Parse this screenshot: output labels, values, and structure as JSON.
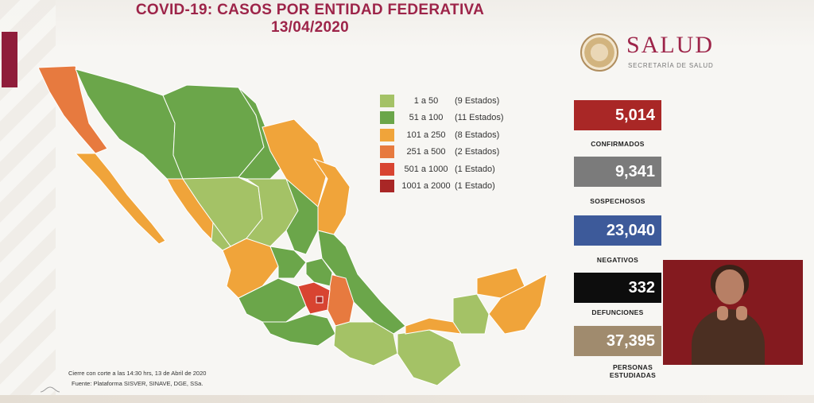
{
  "title_line1": "COVID-19: CASOS POR ENTIDAD FEDERATIVA",
  "title_line2": "13/04/2020",
  "logo": {
    "word": "SALUD",
    "sub": "SECRETARÍA DE SALUD",
    "icon": "coat-of-arms-icon"
  },
  "legend": [
    {
      "range": "1 a 50",
      "count": "(9 Estados)",
      "color": "#a4c266"
    },
    {
      "range": "51 a 100",
      "count": "(11 Estados)",
      "color": "#6ba64a"
    },
    {
      "range": "101 a 250",
      "count": "(8 Estados)",
      "color": "#f0a43a"
    },
    {
      "range": "251 a 500",
      "count": "(2 Estados)",
      "color": "#e77a3f"
    },
    {
      "range": "501 a 1000",
      "count": "(1 Estado)",
      "color": "#d84431"
    },
    {
      "range": "1001 a 2000",
      "count": "(1 Estado)",
      "color": "#a92726"
    }
  ],
  "stats": [
    {
      "value": "5,014",
      "label": "CONFIRMADOS",
      "color": "#a92726"
    },
    {
      "value": "9,341",
      "label": "SOSPECHOSOS",
      "color": "#7b7b7b"
    },
    {
      "value": "23,040",
      "label": "NEGATIVOS",
      "color": "#3d5a9a"
    },
    {
      "value": "332",
      "label": "DEFUNCIONES",
      "color": "#0d0d0d"
    },
    {
      "value": "37,395",
      "label_line1": "PERSONAS",
      "label_line2": "ESTUDIADAS",
      "color": "#a08b6e"
    }
  ],
  "footnote_line1": "Cierre con corte a las 14:30 hrs, 13 de Abril de 2020",
  "footnote_line2": "Fuente: Plataforma SISVER, SINAVE, DGE, SSa."
}
